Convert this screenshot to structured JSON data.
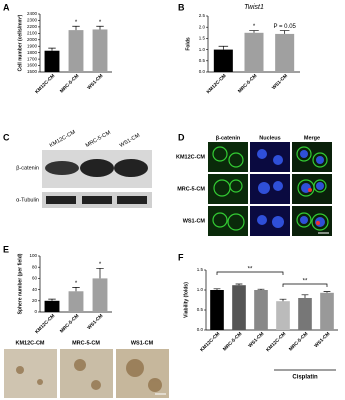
{
  "chart_data": [
    {
      "type": "bar",
      "panel": "A",
      "ylabel": "Cell number (cells/mm²)",
      "categories": [
        "KM12C-CM",
        "MRC-5-CM",
        "WS1-CM"
      ],
      "values": [
        1830,
        2150,
        2160
      ],
      "errors": [
        40,
        60,
        50
      ],
      "colors": [
        "#000000",
        "#a0a0a0",
        "#a0a0a0"
      ],
      "bar_annotations": [
        null,
        "*",
        "*"
      ],
      "ylim": [
        1500,
        2400
      ],
      "yticks": [
        1500,
        1600,
        1700,
        1800,
        1900,
        2000,
        2100,
        2200,
        2300,
        2400
      ]
    },
    {
      "type": "bar",
      "panel": "B",
      "title": "Twist1",
      "ylabel": "Folds",
      "categories": [
        "KM12C-CM",
        "MRC-5-CM",
        "WS1-CM"
      ],
      "values": [
        1.0,
        1.75,
        1.7
      ],
      "errors": [
        0.15,
        0.1,
        0.15
      ],
      "colors": [
        "#000000",
        "#a0a0a0",
        "#a0a0a0"
      ],
      "bar_annotations": [
        null,
        "*",
        "P = 0.05"
      ],
      "ylim": [
        0,
        2.5
      ],
      "yticks": [
        {
          "value": 0,
          "label": "0.0"
        },
        {
          "value": 0.5,
          "label": "0.5"
        },
        {
          "value": 1,
          "label": "1.0"
        },
        {
          "value": 1.5,
          "label": "1.5"
        },
        {
          "value": 2,
          "label": "2.0"
        },
        {
          "value": 2.5,
          "label": "2.5"
        }
      ]
    },
    {
      "type": "bar",
      "panel": "E",
      "ylabel": "Sphere number (per field)",
      "categories": [
        "KM12C-CM",
        "MRC-5-CM",
        "WS1-CM"
      ],
      "values": [
        20,
        37,
        60
      ],
      "errors": [
        3,
        7,
        18
      ],
      "colors": [
        "#000000",
        "#a0a0a0",
        "#a0a0a0"
      ],
      "bar_annotations": [
        null,
        "*",
        "*"
      ],
      "ylim": [
        0,
        100
      ],
      "yticks": [
        0,
        20,
        40,
        60,
        80,
        100
      ]
    },
    {
      "type": "bar",
      "panel": "F",
      "ylabel": "Viability (folds)",
      "categories": [
        "KM12C-CM",
        "MRC-5-CM",
        "WS1-CM",
        "KM12C-CM",
        "MRC-5-CM",
        "WS1-CM"
      ],
      "values": [
        1.0,
        1.12,
        1.0,
        0.72,
        0.8,
        0.93
      ],
      "errors": [
        0.03,
        0.03,
        0.02,
        0.05,
        0.08,
        0.03
      ],
      "colors": [
        "#000000",
        "#555555",
        "#888888",
        "#bbbbbb",
        "#777777",
        "#999999"
      ],
      "brackets": [
        "**",
        "**"
      ],
      "group_label": "Cisplatin",
      "ylim": [
        0,
        1.5
      ],
      "yticks": [
        {
          "value": 0,
          "label": "0.0"
        },
        {
          "value": 0.5,
          "label": "0.5"
        },
        {
          "value": 1,
          "label": "1.0"
        },
        {
          "value": 1.5,
          "label": "1.5"
        }
      ]
    }
  ],
  "blot": {
    "panel": "C",
    "lanes": [
      "KM12C-CM",
      "MRC-5-CM",
      "WS1-CM"
    ],
    "rows": [
      "β-catenin",
      "α-Tubulin"
    ]
  },
  "microscopy": {
    "panel": "D",
    "columns": [
      "β-catenin",
      "Nucleus",
      "Merge"
    ],
    "rows": [
      "KM12C-CM",
      "MRC-5-CM",
      "WS1-CM"
    ]
  },
  "sphere_images": {
    "labels": [
      "KM12C-CM",
      "MRC-5-CM",
      "WS1-CM"
    ]
  }
}
